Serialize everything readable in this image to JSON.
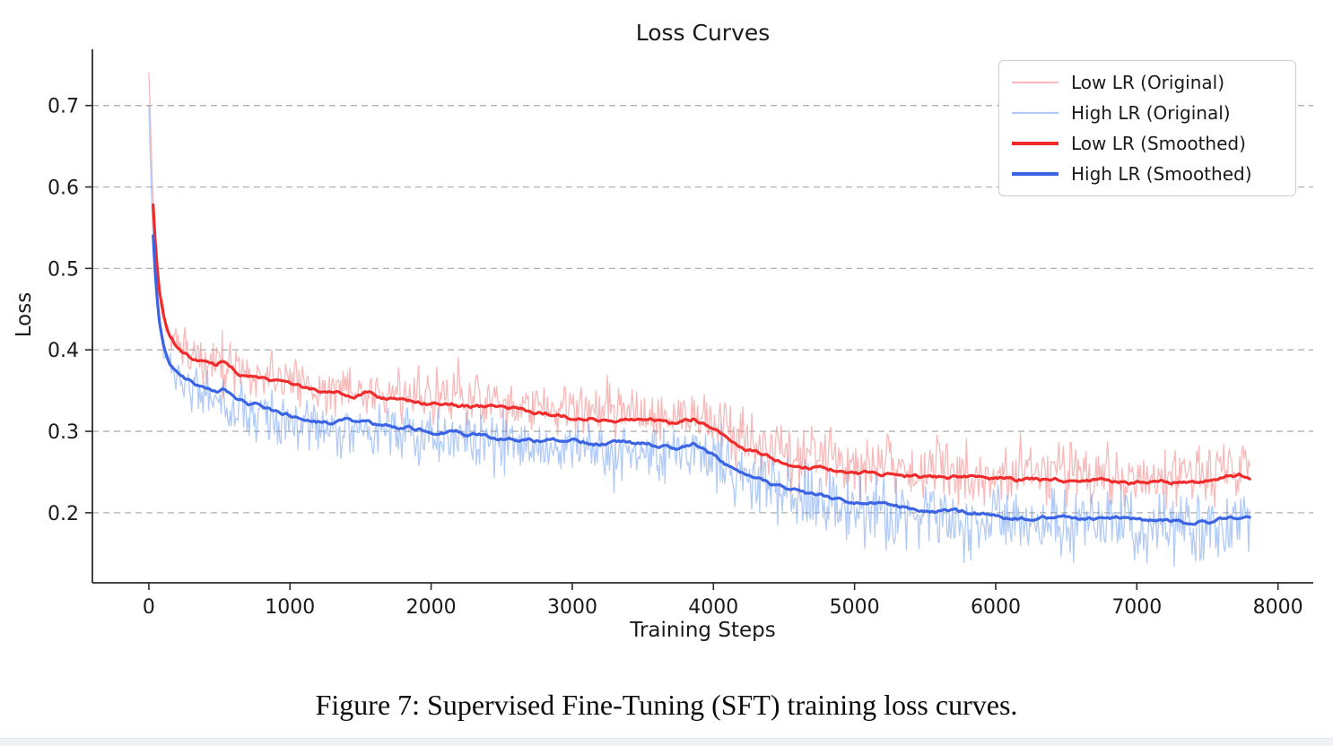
{
  "figure": {
    "caption": "Figure 7: Supervised Fine-Tuning (SFT) training loss curves."
  },
  "legend": {
    "items": [
      {
        "label": "Low LR (Original)",
        "color": "#f08080",
        "opacity": 0.55,
        "thickness": 2
      },
      {
        "label": "High LR (Original)",
        "color": "#6495ed",
        "opacity": 0.5,
        "thickness": 2
      },
      {
        "label": "Low LR (Smoothed)",
        "color": "#f02b2b",
        "opacity": 1.0,
        "thickness": 4
      },
      {
        "label": "High LR (Smoothed)",
        "color": "#3b64e4",
        "opacity": 1.0,
        "thickness": 4
      }
    ]
  },
  "chart_data": {
    "type": "line",
    "title": "Loss Curves",
    "xlabel": "Training Steps",
    "ylabel": "Loss",
    "xlim": [
      -400,
      8250
    ],
    "ylim": [
      0.114,
      0.769
    ],
    "x_ticks": [
      0,
      1000,
      2000,
      3000,
      4000,
      5000,
      6000,
      7000,
      8000
    ],
    "x_tick_labels": [
      "0",
      "1000",
      "2000",
      "3000",
      "4000",
      "5000",
      "6000",
      "7000",
      "8000"
    ],
    "y_ticks": [
      0.2,
      0.3,
      0.4,
      0.5,
      0.6,
      0.7
    ],
    "y_tick_labels": [
      "0.2",
      "0.3",
      "0.4",
      "0.5",
      "0.6",
      "0.7"
    ],
    "grid": "horizontal-dashed",
    "grid_color": "#b0b0b0",
    "legend_position": "upper right",
    "x_end": 7800,
    "series": [
      {
        "name": "Low LR (Original)",
        "role": "original",
        "color": "#f08080",
        "opacity": 0.55,
        "width": 1.3,
        "base": "low_lr_smoothed",
        "spike_prefix": [
          [
            0,
            0.74
          ],
          [
            10,
            0.69
          ],
          [
            20,
            0.63
          ]
        ],
        "noise_amp_early": 0.04,
        "noise_amp_late": 0.052,
        "noise_bias": 0.007,
        "peak": 0.74
      },
      {
        "name": "High LR (Original)",
        "role": "original",
        "color": "#6495ed",
        "opacity": 0.5,
        "width": 1.3,
        "base": "high_lr_smoothed",
        "spike_prefix": [
          [
            0,
            0.7
          ],
          [
            10,
            0.64
          ],
          [
            20,
            0.58
          ]
        ],
        "noise_amp_early": 0.042,
        "noise_amp_late": 0.056,
        "noise_bias": -0.008,
        "peak": 0.7
      },
      {
        "name": "Low LR (Smoothed)",
        "role": "smoothed",
        "color": "#f02b2b",
        "opacity": 1.0,
        "width": 3.2,
        "base": "low_lr_smoothed"
      },
      {
        "name": "High LR (Smoothed)",
        "role": "smoothed",
        "color": "#3b64e4",
        "opacity": 1.0,
        "width": 3.2,
        "base": "high_lr_smoothed"
      }
    ],
    "low_lr_smoothed": [
      [
        30,
        0.578
      ],
      [
        50,
        0.52
      ],
      [
        70,
        0.478
      ],
      [
        100,
        0.445
      ],
      [
        130,
        0.425
      ],
      [
        160,
        0.412
      ],
      [
        200,
        0.399
      ],
      [
        250,
        0.392
      ],
      [
        300,
        0.388
      ],
      [
        350,
        0.385
      ],
      [
        420,
        0.381
      ],
      [
        480,
        0.378
      ],
      [
        520,
        0.384
      ],
      [
        560,
        0.378
      ],
      [
        620,
        0.37
      ],
      [
        700,
        0.365
      ],
      [
        800,
        0.362
      ],
      [
        900,
        0.359
      ],
      [
        1000,
        0.356
      ],
      [
        1100,
        0.351
      ],
      [
        1200,
        0.348
      ],
      [
        1300,
        0.346
      ],
      [
        1450,
        0.344
      ],
      [
        1550,
        0.347
      ],
      [
        1650,
        0.341
      ],
      [
        1800,
        0.338
      ],
      [
        2000,
        0.335
      ],
      [
        2200,
        0.331
      ],
      [
        2400,
        0.328
      ],
      [
        2600,
        0.325
      ],
      [
        2800,
        0.322
      ],
      [
        3000,
        0.319
      ],
      [
        3200,
        0.317
      ],
      [
        3400,
        0.314
      ],
      [
        3600,
        0.312
      ],
      [
        3750,
        0.31
      ],
      [
        3870,
        0.316
      ],
      [
        3950,
        0.309
      ],
      [
        4050,
        0.298
      ],
      [
        4150,
        0.288
      ],
      [
        4250,
        0.279
      ],
      [
        4350,
        0.271
      ],
      [
        4450,
        0.266
      ],
      [
        4550,
        0.262
      ],
      [
        4700,
        0.257
      ],
      [
        4850,
        0.254
      ],
      [
        5000,
        0.251
      ],
      [
        5200,
        0.248
      ],
      [
        5400,
        0.246
      ],
      [
        5700,
        0.244
      ],
      [
        6000,
        0.242
      ],
      [
        6300,
        0.241
      ],
      [
        6600,
        0.24
      ],
      [
        6900,
        0.239
      ],
      [
        7200,
        0.238
      ],
      [
        7500,
        0.239
      ],
      [
        7650,
        0.245
      ],
      [
        7800,
        0.243
      ]
    ],
    "high_lr_smoothed": [
      [
        30,
        0.54
      ],
      [
        50,
        0.48
      ],
      [
        70,
        0.44
      ],
      [
        100,
        0.408
      ],
      [
        130,
        0.39
      ],
      [
        160,
        0.378
      ],
      [
        200,
        0.368
      ],
      [
        250,
        0.362
      ],
      [
        300,
        0.358
      ],
      [
        350,
        0.354
      ],
      [
        420,
        0.35
      ],
      [
        480,
        0.346
      ],
      [
        520,
        0.35
      ],
      [
        560,
        0.344
      ],
      [
        620,
        0.338
      ],
      [
        700,
        0.334
      ],
      [
        800,
        0.33
      ],
      [
        900,
        0.326
      ],
      [
        1000,
        0.322
      ],
      [
        1100,
        0.318
      ],
      [
        1200,
        0.315
      ],
      [
        1300,
        0.313
      ],
      [
        1450,
        0.311
      ],
      [
        1550,
        0.313
      ],
      [
        1650,
        0.308
      ],
      [
        1800,
        0.305
      ],
      [
        2000,
        0.301
      ],
      [
        2200,
        0.3
      ],
      [
        2400,
        0.295
      ],
      [
        2600,
        0.292
      ],
      [
        2800,
        0.29
      ],
      [
        3000,
        0.287
      ],
      [
        3200,
        0.286
      ],
      [
        3400,
        0.284
      ],
      [
        3600,
        0.282
      ],
      [
        3750,
        0.28
      ],
      [
        3870,
        0.285
      ],
      [
        3950,
        0.276
      ],
      [
        4050,
        0.264
      ],
      [
        4150,
        0.253
      ],
      [
        4250,
        0.244
      ],
      [
        4350,
        0.237
      ],
      [
        4450,
        0.231
      ],
      [
        4550,
        0.226
      ],
      [
        4700,
        0.221
      ],
      [
        4850,
        0.217
      ],
      [
        5000,
        0.213
      ],
      [
        5200,
        0.209
      ],
      [
        5400,
        0.205
      ],
      [
        5700,
        0.201
      ],
      [
        6000,
        0.197
      ],
      [
        6300,
        0.195
      ],
      [
        6600,
        0.193
      ],
      [
        6900,
        0.192
      ],
      [
        7200,
        0.19
      ],
      [
        7500,
        0.19
      ],
      [
        7650,
        0.196
      ],
      [
        7800,
        0.192
      ]
    ]
  }
}
